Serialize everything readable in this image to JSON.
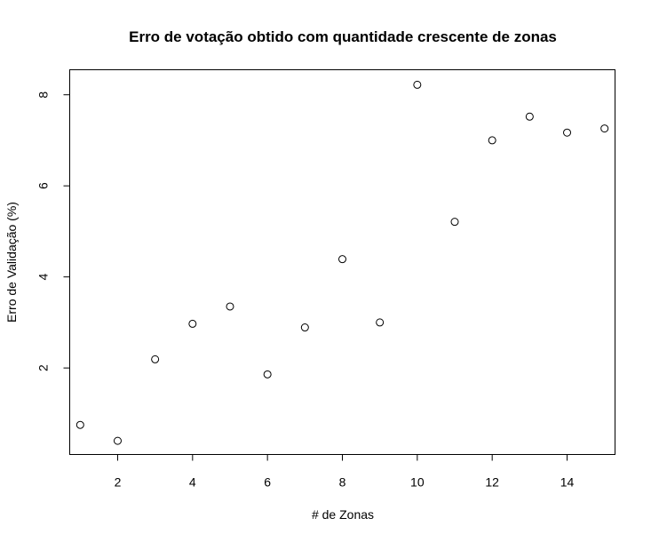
{
  "chart_data": {
    "type": "scatter",
    "title": "Erro de votação obtido com quantidade crescente de zonas",
    "xlabel": "# de Zonas",
    "ylabel": "Erro de Validação (%)",
    "xlim": [
      0.72,
      15.28
    ],
    "ylim": [
      0.1,
      8.55
    ],
    "xticks": [
      2,
      4,
      6,
      8,
      10,
      12,
      14
    ],
    "yticks": [
      2,
      4,
      6,
      8
    ],
    "grid": false,
    "marker": "open-circle",
    "colors": {
      "points": "#000000",
      "axes": "#000000",
      "background": "#ffffff"
    },
    "points": [
      {
        "x": 1,
        "y": 0.75
      },
      {
        "x": 2,
        "y": 0.4
      },
      {
        "x": 3,
        "y": 2.19
      },
      {
        "x": 4,
        "y": 2.97
      },
      {
        "x": 5,
        "y": 3.35
      },
      {
        "x": 6,
        "y": 1.86
      },
      {
        "x": 7,
        "y": 2.89
      },
      {
        "x": 8,
        "y": 4.39
      },
      {
        "x": 9,
        "y": 3.0
      },
      {
        "x": 10,
        "y": 8.22
      },
      {
        "x": 11,
        "y": 5.21
      },
      {
        "x": 12,
        "y": 7.0
      },
      {
        "x": 13,
        "y": 7.52
      },
      {
        "x": 14,
        "y": 7.17
      },
      {
        "x": 15,
        "y": 7.26
      }
    ]
  }
}
